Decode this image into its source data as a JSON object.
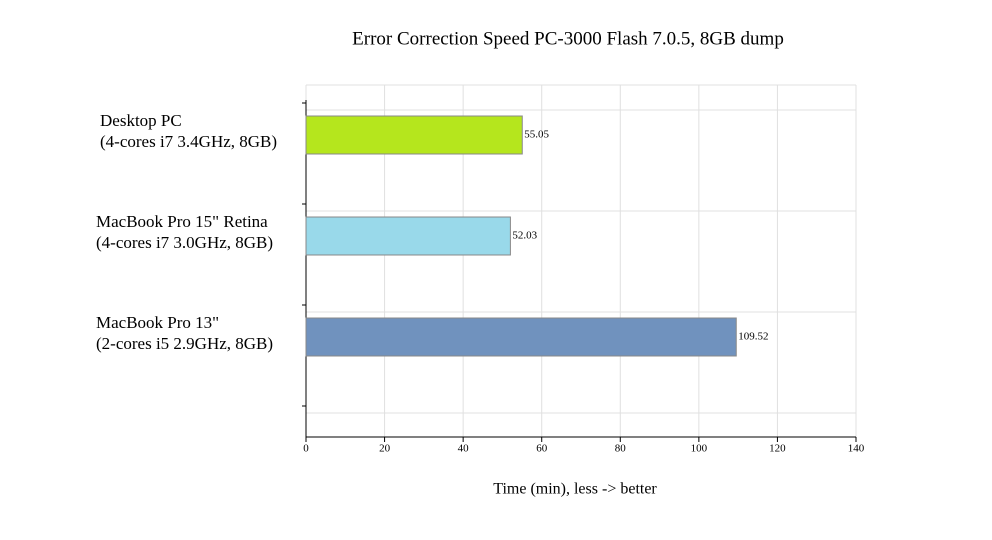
{
  "chart_data": {
    "type": "bar",
    "orientation": "horizontal",
    "title": "Error Correction Speed PC-3000 Flash 7.0.5, 8GB dump",
    "x_label": "Time (min), less -> better",
    "categories": [
      [
        "Desktop PC",
        "(4-cores i7 3.4GHz, 8GB)"
      ],
      [
        "MacBook Pro 15\" Retina",
        "(4-cores i7 3.0GHz, 8GB)"
      ],
      [
        "MacBook Pro 13\"",
        "(2-cores i5 2.9GHz, 8GB)"
      ]
    ],
    "values": [
      55.05,
      52.03,
      109.52
    ],
    "colors": [
      "#b5e61d",
      "#99d9ea",
      "#7092be"
    ],
    "xlim": [
      0,
      140
    ],
    "xticks": [
      0,
      20,
      40,
      60,
      80,
      100,
      120,
      140
    ],
    "grid": true
  }
}
